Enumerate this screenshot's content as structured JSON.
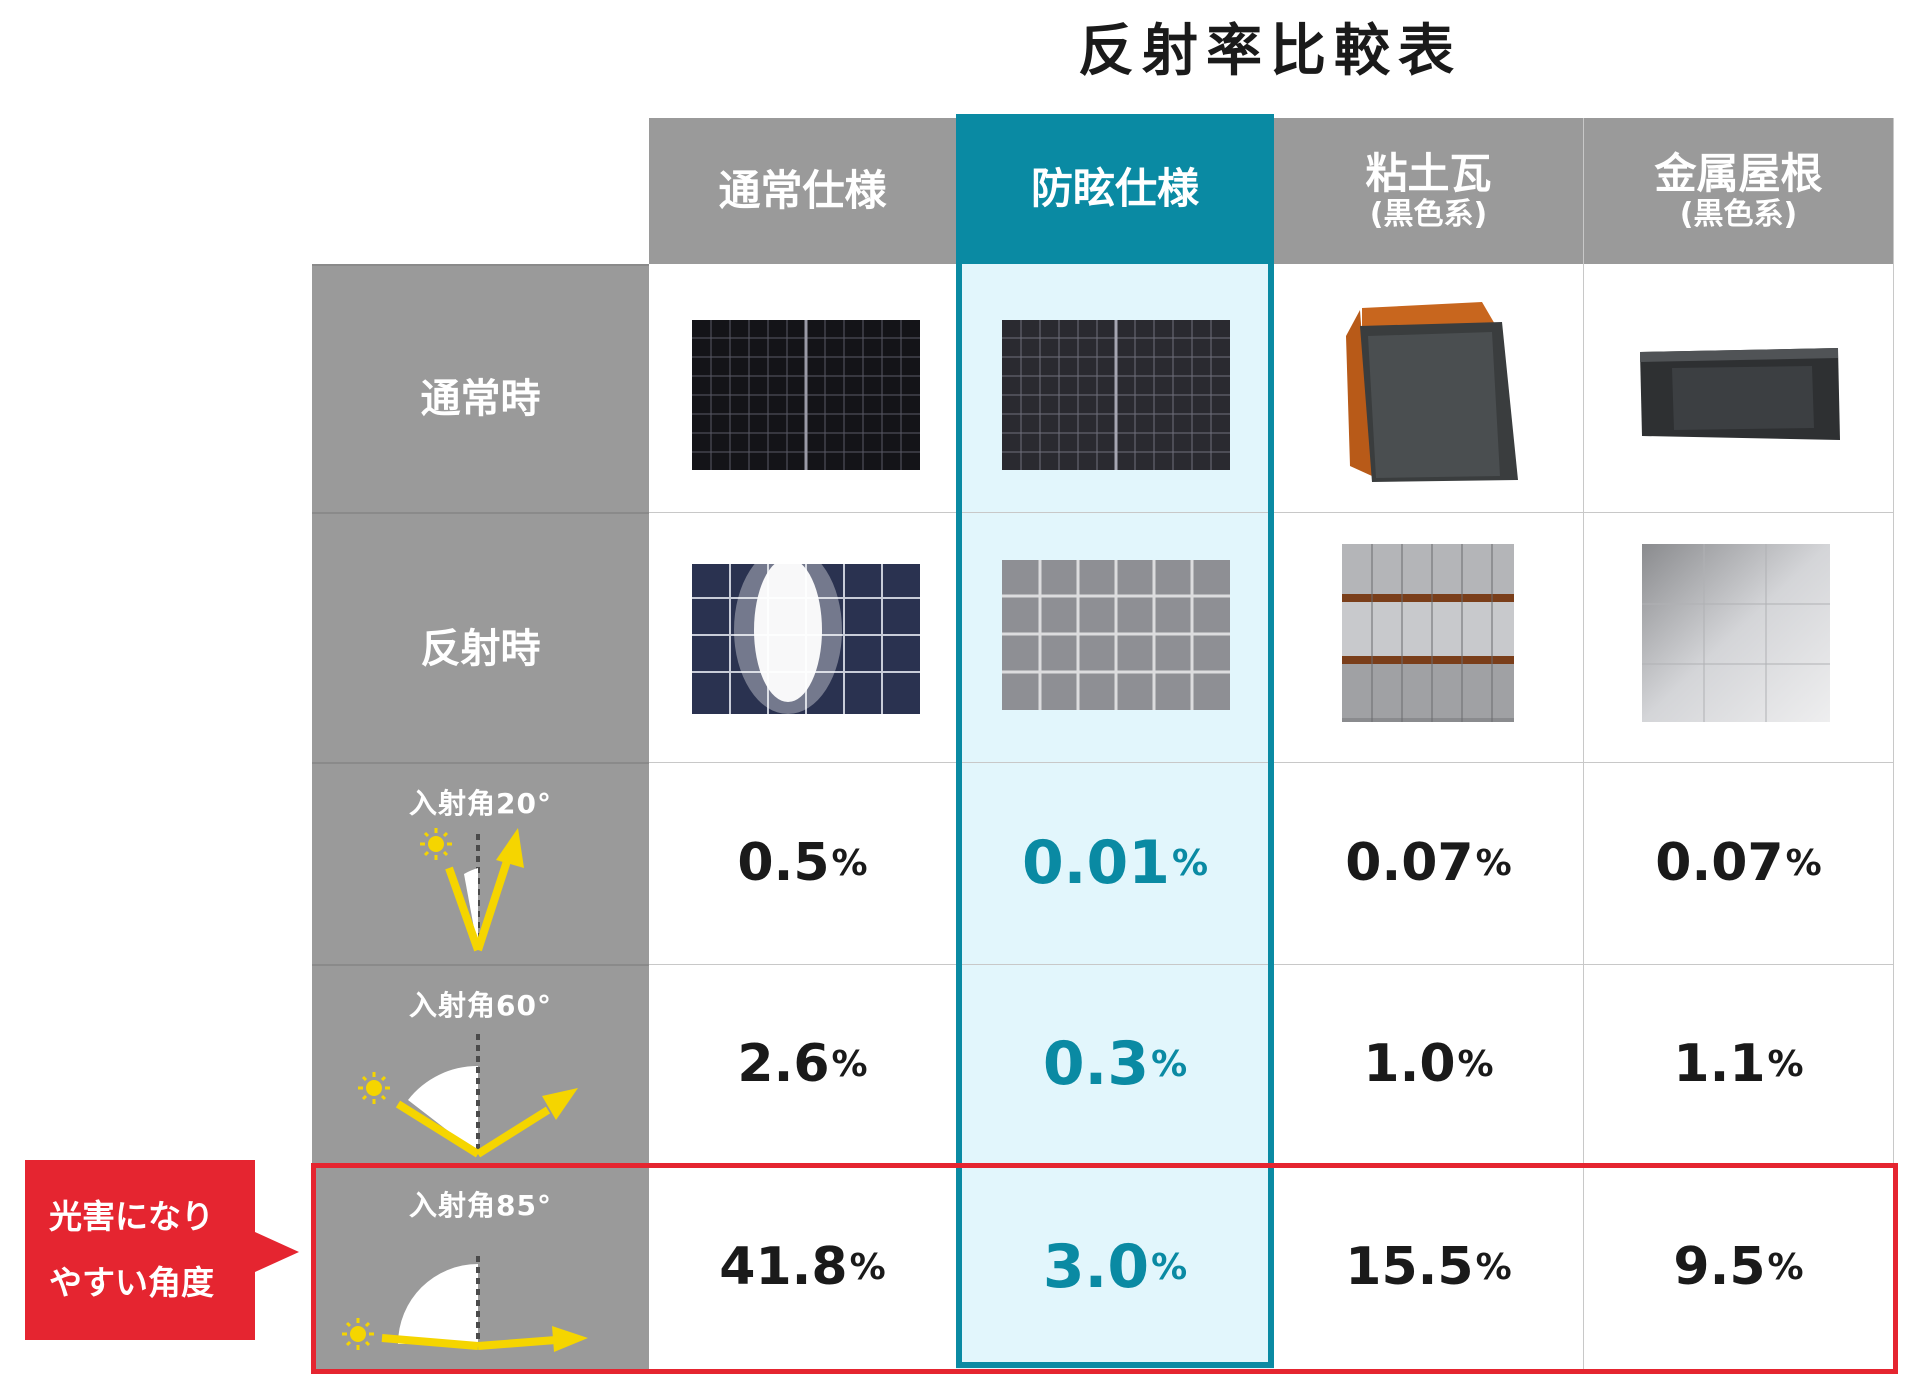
{
  "title": "反射率比較表",
  "columns": [
    {
      "main": "通常仕様",
      "sub": ""
    },
    {
      "main": "防眩仕様",
      "sub": ""
    },
    {
      "main": "粘土瓦",
      "sub": "(黒色系)"
    },
    {
      "main": "金属屋根",
      "sub": "(黒色系)"
    }
  ],
  "rows": {
    "normal_label": "通常時",
    "reflect_label": "反射時"
  },
  "angle_rows": [
    {
      "label": "入射角20°",
      "values": [
        "0.5",
        "0.01",
        "0.07",
        "0.07"
      ]
    },
    {
      "label": "入射角60°",
      "values": [
        "2.6",
        "0.3",
        "1.0",
        "1.1"
      ]
    },
    {
      "label": "入射角85°",
      "values": [
        "41.8",
        "3.0",
        "15.5",
        "9.5"
      ]
    }
  ],
  "unit": "%",
  "callout": {
    "line1": "光害になり",
    "line2": "やすい角度"
  },
  "colors": {
    "accent": "#0a8aa3",
    "header_gray": "#9a9a9a",
    "highlight_bg": "#e2f6fc",
    "alert_red": "#e52530",
    "ray_yellow": "#f5d500"
  },
  "icons": [
    "sun-icon",
    "incident-ray-arrow",
    "reflected-ray-arrow",
    "angle-arc"
  ]
}
